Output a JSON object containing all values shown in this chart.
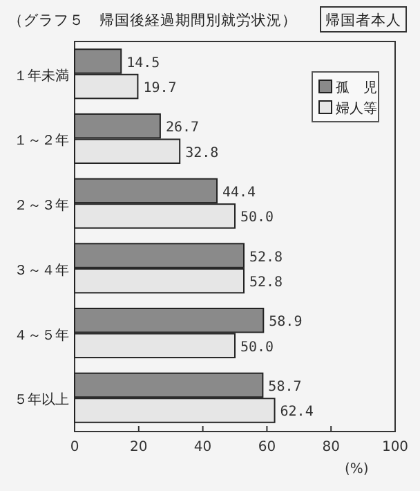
{
  "chart_data": {
    "type": "bar",
    "orientation": "horizontal",
    "title": "（グラフ５　帰国後経過期間別就労状況）",
    "subtitle": "帰国者本人",
    "xlabel": "(%)",
    "categories": [
      "１年未満",
      "１～２年",
      "２～３年",
      "３～４年",
      "４～５年",
      "５年以上"
    ],
    "series": [
      {
        "name": "孤　児",
        "color": "#8a8a8a",
        "values": [
          14.5,
          26.7,
          44.4,
          52.8,
          58.9,
          58.7
        ],
        "value_labels": [
          "14.5",
          "26.7",
          "44.4",
          "52.8",
          "58.9",
          "58.7"
        ]
      },
      {
        "name": "婦人等",
        "color": "#e6e6e6",
        "values": [
          19.7,
          32.8,
          50.0,
          52.8,
          50.0,
          62.4
        ],
        "value_labels": [
          "19.7",
          "32.8",
          "50.0",
          "52.8",
          "50.0",
          "62.4"
        ]
      }
    ],
    "xlim": [
      0,
      100
    ],
    "xticks": [
      0,
      20,
      40,
      60,
      80,
      100
    ],
    "legend": "top right",
    "grid": false
  }
}
